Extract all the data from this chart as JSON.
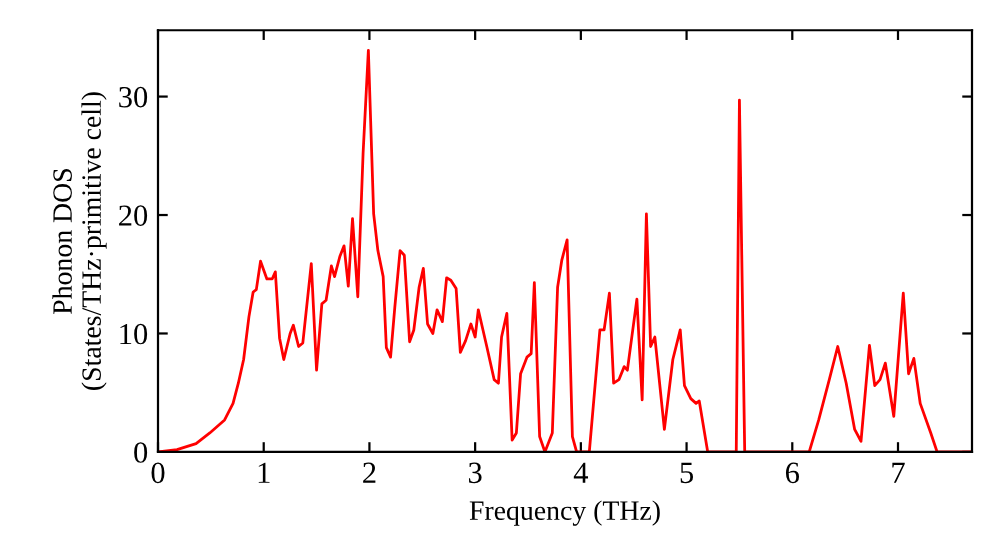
{
  "chart_data": {
    "type": "line",
    "xlabel": "Frequency (THz)",
    "ylabel": "Phonon DOS\n(States/THz·primitive cell)",
    "xlim": [
      0,
      7.7
    ],
    "ylim": [
      0,
      35.6
    ],
    "xticks": [
      0,
      1,
      2,
      3,
      4,
      5,
      6,
      7
    ],
    "yticks": [
      0,
      10,
      20,
      30
    ],
    "grid": false,
    "legend": false,
    "marker": "none",
    "line_style": "solid",
    "series": [
      {
        "color": "#ff0000",
        "x": [
          0,
          0.18,
          0.36,
          0.49,
          0.63,
          0.71,
          0.76,
          0.81,
          0.86,
          0.9,
          0.93,
          0.97,
          1.03,
          1.08,
          1.11,
          1.15,
          1.19,
          1.25,
          1.28,
          1.33,
          1.37,
          1.45,
          1.5,
          1.55,
          1.59,
          1.64,
          1.67,
          1.72,
          1.76,
          1.8,
          1.84,
          1.89,
          1.94,
          1.99,
          2.04,
          2.08,
          2.13,
          2.16,
          2.2,
          2.24,
          2.29,
          2.33,
          2.38,
          2.42,
          2.47,
          2.51,
          2.55,
          2.6,
          2.64,
          2.69,
          2.73,
          2.77,
          2.82,
          2.86,
          2.91,
          2.96,
          3.0,
          3.03,
          3.11,
          3.18,
          3.22,
          3.25,
          3.3,
          3.35,
          3.39,
          3.43,
          3.49,
          3.53,
          3.56,
          3.61,
          3.66,
          3.73,
          3.78,
          3.82,
          3.87,
          3.92,
          3.96,
          4.08,
          4.18,
          4.22,
          4.27,
          4.31,
          4.36,
          4.41,
          4.44,
          4.53,
          4.58,
          4.62,
          4.66,
          4.7,
          4.79,
          4.87,
          4.94,
          4.98,
          5.04,
          5.09,
          5.12,
          5.2,
          5.47,
          5.5,
          5.55,
          6.16,
          6.25,
          6.35,
          6.43,
          6.51,
          6.59,
          6.65,
          6.73,
          6.78,
          6.83,
          6.88,
          6.96,
          7.05,
          7.1,
          7.15,
          7.21,
          7.31,
          7.37,
          7.69
        ],
        "values": [
          0,
          0.2,
          0.7,
          1.6,
          2.7,
          4.1,
          5.8,
          7.8,
          11.4,
          13.5,
          13.7,
          16.1,
          14.6,
          14.6,
          15.2,
          9.6,
          7.8,
          10,
          10.7,
          8.9,
          9.2,
          15.9,
          6.9,
          12.5,
          12.8,
          15.7,
          14.8,
          16.5,
          17.4,
          14,
          19.7,
          13.1,
          25.2,
          33.9,
          20.1,
          17,
          14.8,
          8.8,
          8,
          12.2,
          17,
          16.6,
          9.3,
          10.3,
          13.9,
          15.5,
          10.8,
          10,
          12,
          11,
          14.7,
          14.5,
          13.8,
          8.4,
          9.4,
          10.8,
          9.7,
          12,
          8.9,
          6.1,
          5.8,
          9.7,
          11.7,
          1.0,
          1.6,
          6.6,
          8,
          8.3,
          14.3,
          1.3,
          0,
          1.6,
          13.9,
          16.2,
          17.9,
          1.3,
          0,
          0,
          10.3,
          10.3,
          13.4,
          5.8,
          6.1,
          7.2,
          6.9,
          12.9,
          4.4,
          20.1,
          8.9,
          9.7,
          1.9,
          7.8,
          10.3,
          5.6,
          4.5,
          4.1,
          4.3,
          0,
          0,
          29.7,
          0,
          0,
          2.7,
          6.1,
          8.9,
          5.8,
          1.9,
          0.9,
          9.0,
          5.6,
          6.1,
          7.5,
          3.0,
          13.4,
          6.6,
          7.9,
          4.1,
          1.6,
          0,
          0
        ]
      }
    ]
  }
}
